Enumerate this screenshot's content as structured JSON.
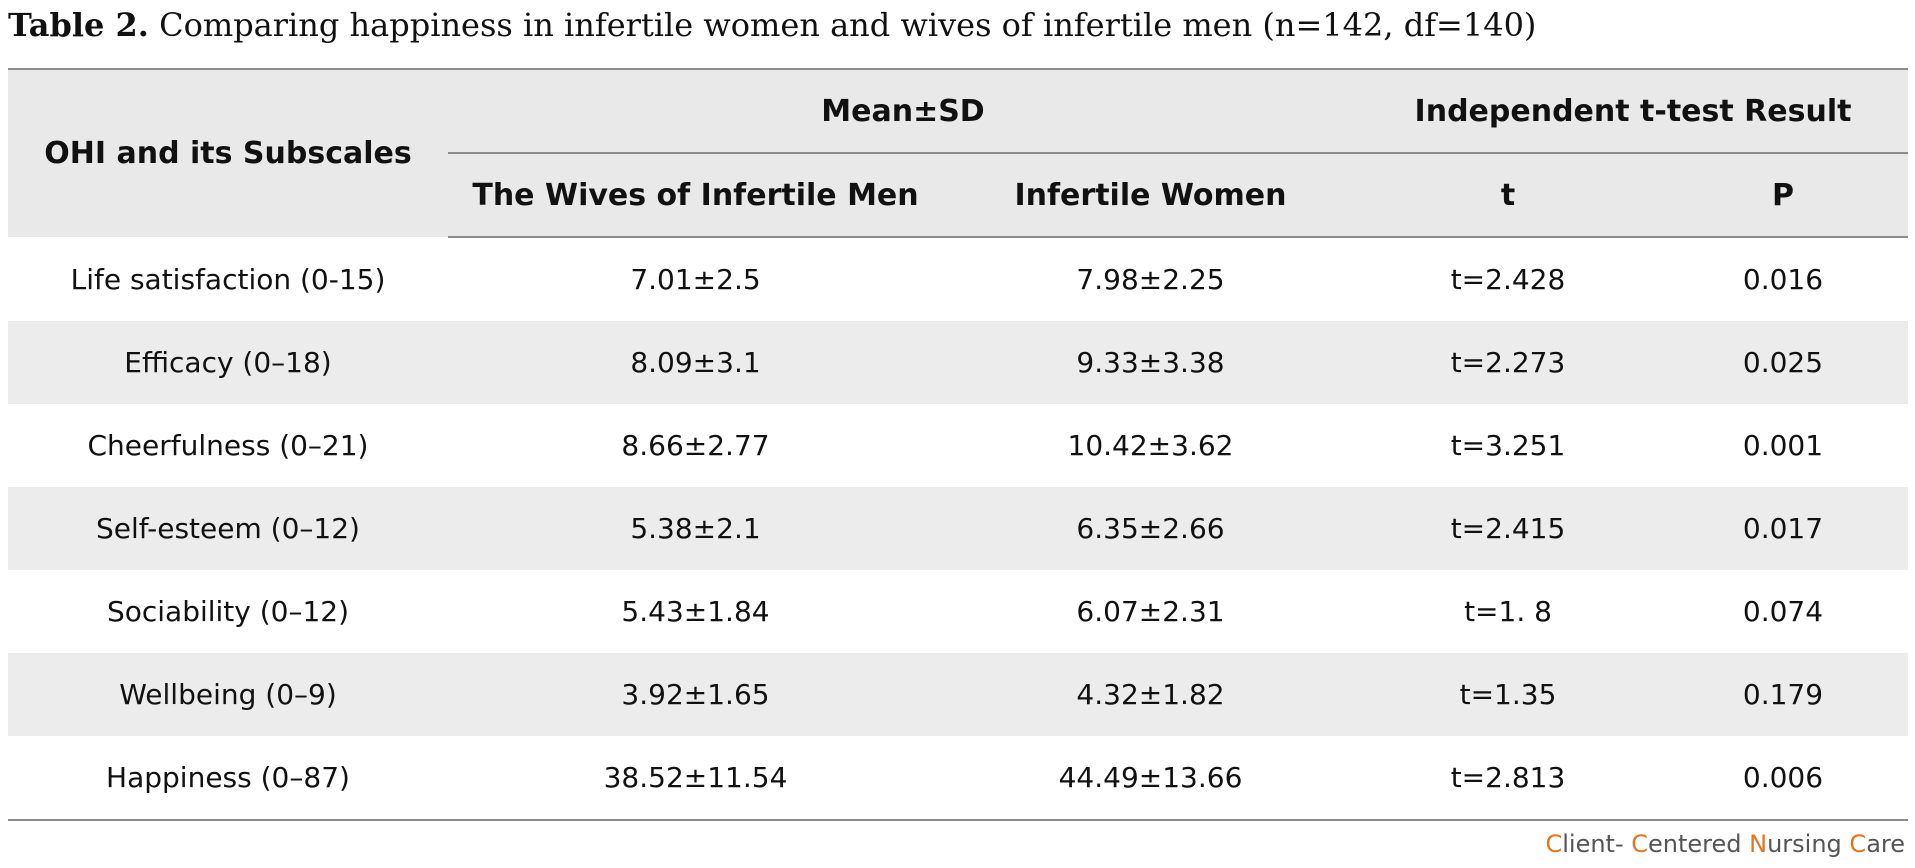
{
  "caption": {
    "label": "Table 2.",
    "text": " Comparing happiness in infertile women and wives of infertile men (n=142, df=140)"
  },
  "headers": {
    "row_header": "OHI and its Subscales",
    "group_mean": "Mean±SD",
    "group_ttest": "Independent t-test Result",
    "col_wives": "The Wives of Infertile Men",
    "col_women": "Infertile Women",
    "col_t": "t",
    "col_p": "P"
  },
  "rows": [
    {
      "subscale": "Life satisfaction (0-15)",
      "wives": "7.01±2.5",
      "women": "7.98±2.25",
      "t": "t=2.428",
      "p": "0.016"
    },
    {
      "subscale": "Efficacy (0–18)",
      "wives": "8.09±3.1",
      "women": "9.33±3.38",
      "t": "t=2.273",
      "p": "0.025"
    },
    {
      "subscale": "Cheerfulness (0–21)",
      "wives": "8.66±2.77",
      "women": "10.42±3.62",
      "t": "t=3.251",
      "p": "0.001"
    },
    {
      "subscale": "Self-esteem (0–12)",
      "wives": "5.38±2.1",
      "women": "6.35±2.66",
      "t": "t=2.415",
      "p": "0.017"
    },
    {
      "subscale": "Sociability (0–12)",
      "wives": "5.43±1.84",
      "women": "6.07±2.31",
      "t": "t=1. 8",
      "p": "0.074"
    },
    {
      "subscale": "Wellbeing (0–9)",
      "wives": "3.92±1.65",
      "women": "4.32±1.82",
      "t": "t=1.35",
      "p": "0.179"
    },
    {
      "subscale": "Happiness (0–87)",
      "wives": "38.52±11.54",
      "women": "44.49±13.66",
      "t": "t=2.813",
      "p": "0.006"
    }
  ],
  "credit": {
    "c1": "C",
    "w1": "lient- ",
    "c2": "C",
    "w2": "entered ",
    "c3": "N",
    "w3": "ursing ",
    "c4": "C",
    "w4": "are"
  },
  "colors": {
    "header_bg": "#e9e9e9",
    "stripe_bg": "#ececec",
    "rule": "#8c8c8c",
    "credit_accent": "#e2761c"
  }
}
